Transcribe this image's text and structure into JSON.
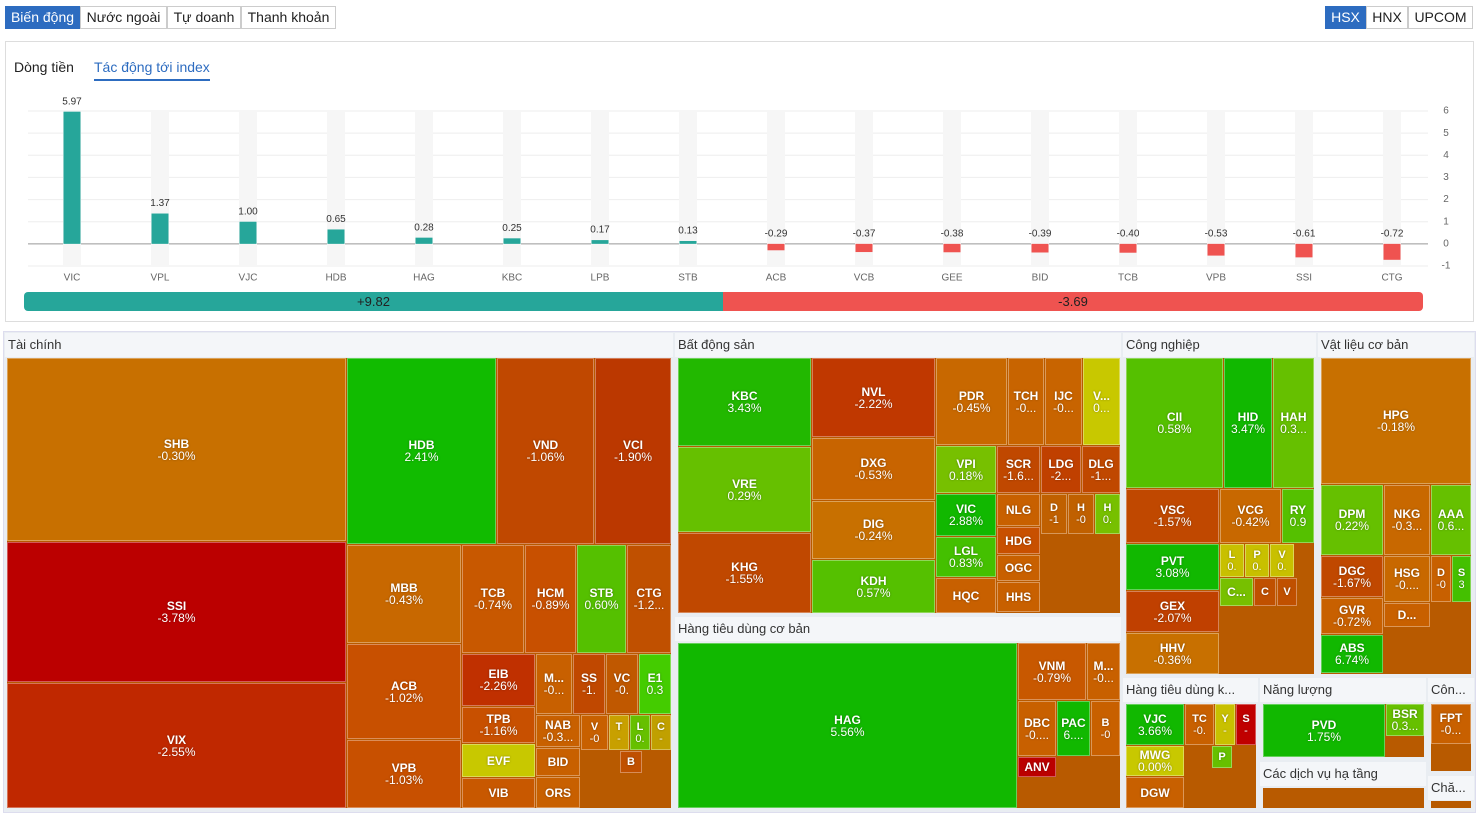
{
  "tabs": [
    "Biến động",
    "Nước ngoài",
    "Tự doanh",
    "Thanh khoản"
  ],
  "exchanges": [
    "HSX",
    "HNX",
    "UPCOM"
  ],
  "subtabs": [
    "Dòng tiền",
    "Tác động tới index"
  ],
  "chart_data": {
    "type": "bar",
    "categories": [
      "VIC",
      "VPL",
      "VJC",
      "HDB",
      "HAG",
      "KBC",
      "LPB",
      "STB",
      "ACB",
      "VCB",
      "GEE",
      "BID",
      "TCB",
      "VPB",
      "SSI",
      "CTG"
    ],
    "values": [
      5.97,
      1.37,
      1.0,
      0.65,
      0.28,
      0.25,
      0.17,
      0.13,
      -0.29,
      -0.37,
      -0.38,
      -0.39,
      -0.4,
      -0.53,
      -0.61,
      -0.72
    ],
    "value_labels": [
      "5.97",
      "1.37",
      "1.00",
      "0.65",
      "0.28",
      "0.25",
      "0.17",
      "0.13",
      "-0.29",
      "-0.37",
      "-0.38",
      "-0.39",
      "-0.40",
      "-0.53",
      "-0.61",
      "-0.72"
    ],
    "positive_color": "#26a69a",
    "negative_color": "#ef5350",
    "ylim": [
      -1,
      6
    ],
    "yticks": [
      6,
      5,
      4,
      3,
      2,
      1,
      0,
      -1
    ],
    "grid": true,
    "totals": [
      "+9.82",
      "-3.69"
    ]
  },
  "treemap": {
    "sectors": [
      {
        "name": "Tài chính",
        "cells": [
          {
            "ticker": "SHB",
            "change": "-0.30%",
            "color": "#c87000"
          },
          {
            "ticker": "SSI",
            "change": "-3.78%",
            "color": "#bb0000"
          },
          {
            "ticker": "VIX",
            "change": "-2.55%",
            "color": "#c02800"
          },
          {
            "ticker": "HDB",
            "change": "2.41%",
            "color": "#11bb00"
          },
          {
            "ticker": "VND",
            "change": "-1.06%",
            "color": "#c04800"
          },
          {
            "ticker": "VCI",
            "change": "-1.90%",
            "color": "#bb3800"
          },
          {
            "ticker": "MBB",
            "change": "-0.43%",
            "color": "#c86800"
          },
          {
            "ticker": "TCB",
            "change": "-0.74%",
            "color": "#c85800"
          },
          {
            "ticker": "HCM",
            "change": "-0.89%",
            "color": "#c85000"
          },
          {
            "ticker": "STB",
            "change": "0.60%",
            "color": "#55c000"
          },
          {
            "ticker": "CTG",
            "change": "-1.2...",
            "color": "#c05000"
          },
          {
            "ticker": "ACB",
            "change": "-1.02%",
            "color": "#c85000"
          },
          {
            "ticker": "VPB",
            "change": "-1.03%",
            "color": "#c85000"
          },
          {
            "ticker": "EIB",
            "change": "-2.26%",
            "color": "#c03000"
          },
          {
            "ticker": "TPB",
            "change": "-1.16%",
            "color": "#c85000"
          },
          {
            "ticker": "EVF",
            "color": "#c8c800"
          },
          {
            "ticker": "VIB",
            "color": "#c85800"
          },
          {
            "ticker": "M...",
            "change": "-0...",
            "color": "#c86000"
          },
          {
            "ticker": "SS",
            "change": "-1.",
            "color": "#c04800"
          },
          {
            "ticker": "VC",
            "change": "-0.",
            "color": "#c05800"
          },
          {
            "ticker": "E1",
            "change": "0.3",
            "color": "#44cc00"
          },
          {
            "ticker": "NAB",
            "change": "-0.3...",
            "color": "#c86000"
          },
          {
            "ticker": "V",
            "change": "-0",
            "color": "#c86000"
          },
          {
            "ticker": "T",
            "change": "-",
            "color": "#c8a000"
          },
          {
            "ticker": "L",
            "change": "0.",
            "color": "#66c000"
          },
          {
            "ticker": "C",
            "change": "-",
            "color": "#c0a000"
          },
          {
            "ticker": "BID",
            "color": "#c86000"
          },
          {
            "ticker": "ORS",
            "color": "#c86000"
          },
          {
            "ticker": "B",
            "color": "#c05000"
          }
        ]
      },
      {
        "name": "Bất động sản",
        "cells": [
          {
            "ticker": "KBC",
            "change": "3.43%",
            "color": "#22b800"
          },
          {
            "ticker": "VRE",
            "change": "0.29%",
            "color": "#66c000"
          },
          {
            "ticker": "KHG",
            "change": "-1.55%",
            "color": "#c04800"
          },
          {
            "ticker": "NVL",
            "change": "-2.22%",
            "color": "#c03800"
          },
          {
            "ticker": "DXG",
            "change": "-0.53%",
            "color": "#c86400"
          },
          {
            "ticker": "DIG",
            "change": "-0.24%",
            "color": "#c87000"
          },
          {
            "ticker": "KDH",
            "change": "0.57%",
            "color": "#55c000"
          },
          {
            "ticker": "PDR",
            "change": "-0.45%",
            "color": "#c86800"
          },
          {
            "ticker": "TCH",
            "change": "-0...",
            "color": "#c86400"
          },
          {
            "ticker": "IJC",
            "change": "-0...",
            "color": "#c86400"
          },
          {
            "ticker": "V...",
            "change": "0...",
            "color": "#c8c800"
          },
          {
            "ticker": "VPI",
            "change": "0.18%",
            "color": "#77c000"
          },
          {
            "ticker": "SCR",
            "change": "-1.6...",
            "color": "#c04800"
          },
          {
            "ticker": "LDG",
            "change": "-2...",
            "color": "#c04000"
          },
          {
            "ticker": "DLG",
            "change": "-1...",
            "color": "#c04800"
          },
          {
            "ticker": "VIC",
            "change": "2.88%",
            "color": "#11b800"
          },
          {
            "ticker": "NLG",
            "color": "#c86000"
          },
          {
            "ticker": "D",
            "change": "-1",
            "color": "#c06000"
          },
          {
            "ticker": "H",
            "change": "-0",
            "color": "#c06000"
          },
          {
            "ticker": "H",
            "change": "0.",
            "color": "#77c000"
          },
          {
            "ticker": "HDG",
            "color": "#c85000"
          },
          {
            "ticker": "LGL",
            "change": "0.83%",
            "color": "#44c000"
          },
          {
            "ticker": "OGC",
            "color": "#c86000"
          },
          {
            "ticker": "HQC",
            "color": "#c86000"
          },
          {
            "ticker": "HHS",
            "color": "#c86000"
          }
        ]
      },
      {
        "name": "Hàng tiêu dùng cơ bản",
        "cells": [
          {
            "ticker": "HAG",
            "change": "5.56%",
            "color": "#11b800"
          },
          {
            "ticker": "VNM",
            "change": "-0.79%",
            "color": "#c85800"
          },
          {
            "ticker": "M...",
            "change": "-0...",
            "color": "#c86000"
          },
          {
            "ticker": "DBC",
            "change": "-0....",
            "color": "#c86000"
          },
          {
            "ticker": "PAC",
            "change": "6....",
            "color": "#11b800"
          },
          {
            "ticker": "B",
            "change": "-0",
            "color": "#c86000"
          },
          {
            "ticker": "ANV",
            "color": "#bb0000"
          }
        ]
      },
      {
        "name": "Công nghiệp",
        "cells": [
          {
            "ticker": "CII",
            "change": "0.58%",
            "color": "#55c000"
          },
          {
            "ticker": "HID",
            "change": "3.47%",
            "color": "#11b800"
          },
          {
            "ticker": "HAH",
            "change": "0.3...",
            "color": "#66c000"
          },
          {
            "ticker": "VSC",
            "change": "-1.57%",
            "color": "#c04800"
          },
          {
            "ticker": "VCG",
            "change": "-0.42%",
            "color": "#c86800"
          },
          {
            "ticker": "RY",
            "change": "0.9",
            "color": "#55c000"
          },
          {
            "ticker": "PVT",
            "change": "3.08%",
            "color": "#11b800"
          },
          {
            "ticker": "L",
            "change": "0.",
            "color": "#c8c000"
          },
          {
            "ticker": "P",
            "change": "0.",
            "color": "#c8c000"
          },
          {
            "ticker": "V",
            "change": "0.",
            "color": "#c8c000"
          },
          {
            "ticker": "GEX",
            "change": "-2.07%",
            "color": "#c04000"
          },
          {
            "ticker": "C...",
            "color": "#77c000"
          },
          {
            "ticker": "C",
            "color": "#c05000"
          },
          {
            "ticker": "V",
            "color": "#c05000"
          },
          {
            "ticker": "HHV",
            "change": "-0.36%",
            "color": "#c87000"
          }
        ]
      },
      {
        "name": "Vật liệu cơ bản",
        "cells": [
          {
            "ticker": "HPG",
            "change": "-0.18%",
            "color": "#c87000"
          },
          {
            "ticker": "DPM",
            "change": "0.22%",
            "color": "#66c000"
          },
          {
            "ticker": "NKG",
            "change": "-0.3...",
            "color": "#c86800"
          },
          {
            "ticker": "AAA",
            "change": "0.6...",
            "color": "#66c000"
          },
          {
            "ticker": "DGC",
            "change": "-1.67%",
            "color": "#c04800"
          },
          {
            "ticker": "HSG",
            "change": "-0....",
            "color": "#c86800"
          },
          {
            "ticker": "D",
            "change": "-0",
            "color": "#c86000"
          },
          {
            "ticker": "S",
            "change": "3",
            "color": "#44c000"
          },
          {
            "ticker": "GVR",
            "change": "-0.72%",
            "color": "#c86000"
          },
          {
            "ticker": "D...",
            "color": "#c86000"
          },
          {
            "ticker": "ABS",
            "change": "6.74%",
            "color": "#11b800"
          }
        ]
      },
      {
        "name": "Hàng tiêu dùng k...",
        "cells": [
          {
            "ticker": "VJC",
            "change": "3.66%",
            "color": "#11b800"
          },
          {
            "ticker": "TC",
            "change": "-0.",
            "color": "#c86000"
          },
          {
            "ticker": "Y",
            "change": "-",
            "color": "#c8c000"
          },
          {
            "ticker": "S",
            "change": "-",
            "color": "#c00000"
          },
          {
            "ticker": "MWG",
            "change": "0.00%",
            "color": "#c8c800"
          },
          {
            "ticker": "P",
            "color": "#66c000"
          },
          {
            "ticker": "DGW",
            "color": "#c86000"
          }
        ]
      },
      {
        "name": "Năng lượng",
        "cells": [
          {
            "ticker": "PVD",
            "change": "1.75%",
            "color": "#11b800"
          },
          {
            "ticker": "BSR",
            "change": "0.3...",
            "color": "#66c000"
          }
        ]
      },
      {
        "name": "Các dịch vụ hạ tầng",
        "cells": []
      },
      {
        "name": "Côn...",
        "cells": [
          {
            "ticker": "FPT",
            "change": "-0...",
            "color": "#c86000"
          }
        ]
      },
      {
        "name": "Chă...",
        "cells": []
      }
    ]
  }
}
